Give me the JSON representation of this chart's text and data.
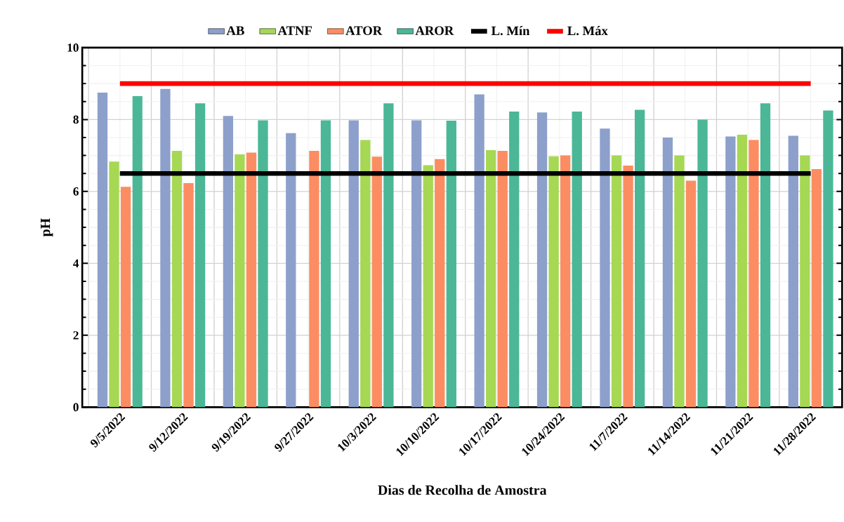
{
  "chart_data": {
    "type": "bar",
    "xlabel": "Dias de Recolha de Amostra",
    "ylabel": "pH",
    "categories": [
      "9/5/2022",
      "9/12/2022",
      "9/19/2022",
      "9/27/2022",
      "10/3/2022",
      "10/10/2022",
      "10/17/2022",
      "10/24/2022",
      "11/7/2022",
      "11/14/2022",
      "11/21/2022",
      "11/28/2022"
    ],
    "series": [
      {
        "name": "AB",
        "color": "#8da0cb",
        "values": [
          8.75,
          8.85,
          8.1,
          7.62,
          7.98,
          7.98,
          8.7,
          8.2,
          7.75,
          7.5,
          7.53,
          7.55
        ]
      },
      {
        "name": "ATNF",
        "color": "#a6d854",
        "values": [
          6.83,
          7.13,
          7.03,
          null,
          7.43,
          6.73,
          7.15,
          6.98,
          7.0,
          7.0,
          7.58,
          7.0
        ]
      },
      {
        "name": "ATOR",
        "color": "#fc8d62",
        "values": [
          6.13,
          6.23,
          7.08,
          7.13,
          6.97,
          6.9,
          7.13,
          7.0,
          6.72,
          6.3,
          7.43,
          6.62
        ]
      },
      {
        "name": "AROR",
        "color": "#4bb796",
        "values": [
          8.65,
          8.45,
          7.98,
          7.98,
          8.45,
          7.97,
          8.22,
          8.22,
          8.27,
          8.0,
          8.45,
          8.25
        ]
      },
      {
        "name": "L. Mín",
        "type": "line",
        "color": "#000000",
        "values": [
          6.5,
          6.5,
          6.5,
          6.5,
          6.5,
          6.5,
          6.5,
          6.5,
          6.5,
          6.5,
          6.5,
          6.5
        ]
      },
      {
        "name": "L. Máx",
        "type": "line",
        "color": "#ff0000",
        "values": [
          9.0,
          9.0,
          9.0,
          9.0,
          9.0,
          9.0,
          9.0,
          9.0,
          9.0,
          9.0,
          9.0,
          9.0
        ]
      }
    ],
    "ylim": [
      0,
      10
    ],
    "yticks": [
      0,
      2,
      4,
      6,
      8,
      10
    ],
    "grid": true,
    "legend": "top",
    "marker": "none"
  }
}
